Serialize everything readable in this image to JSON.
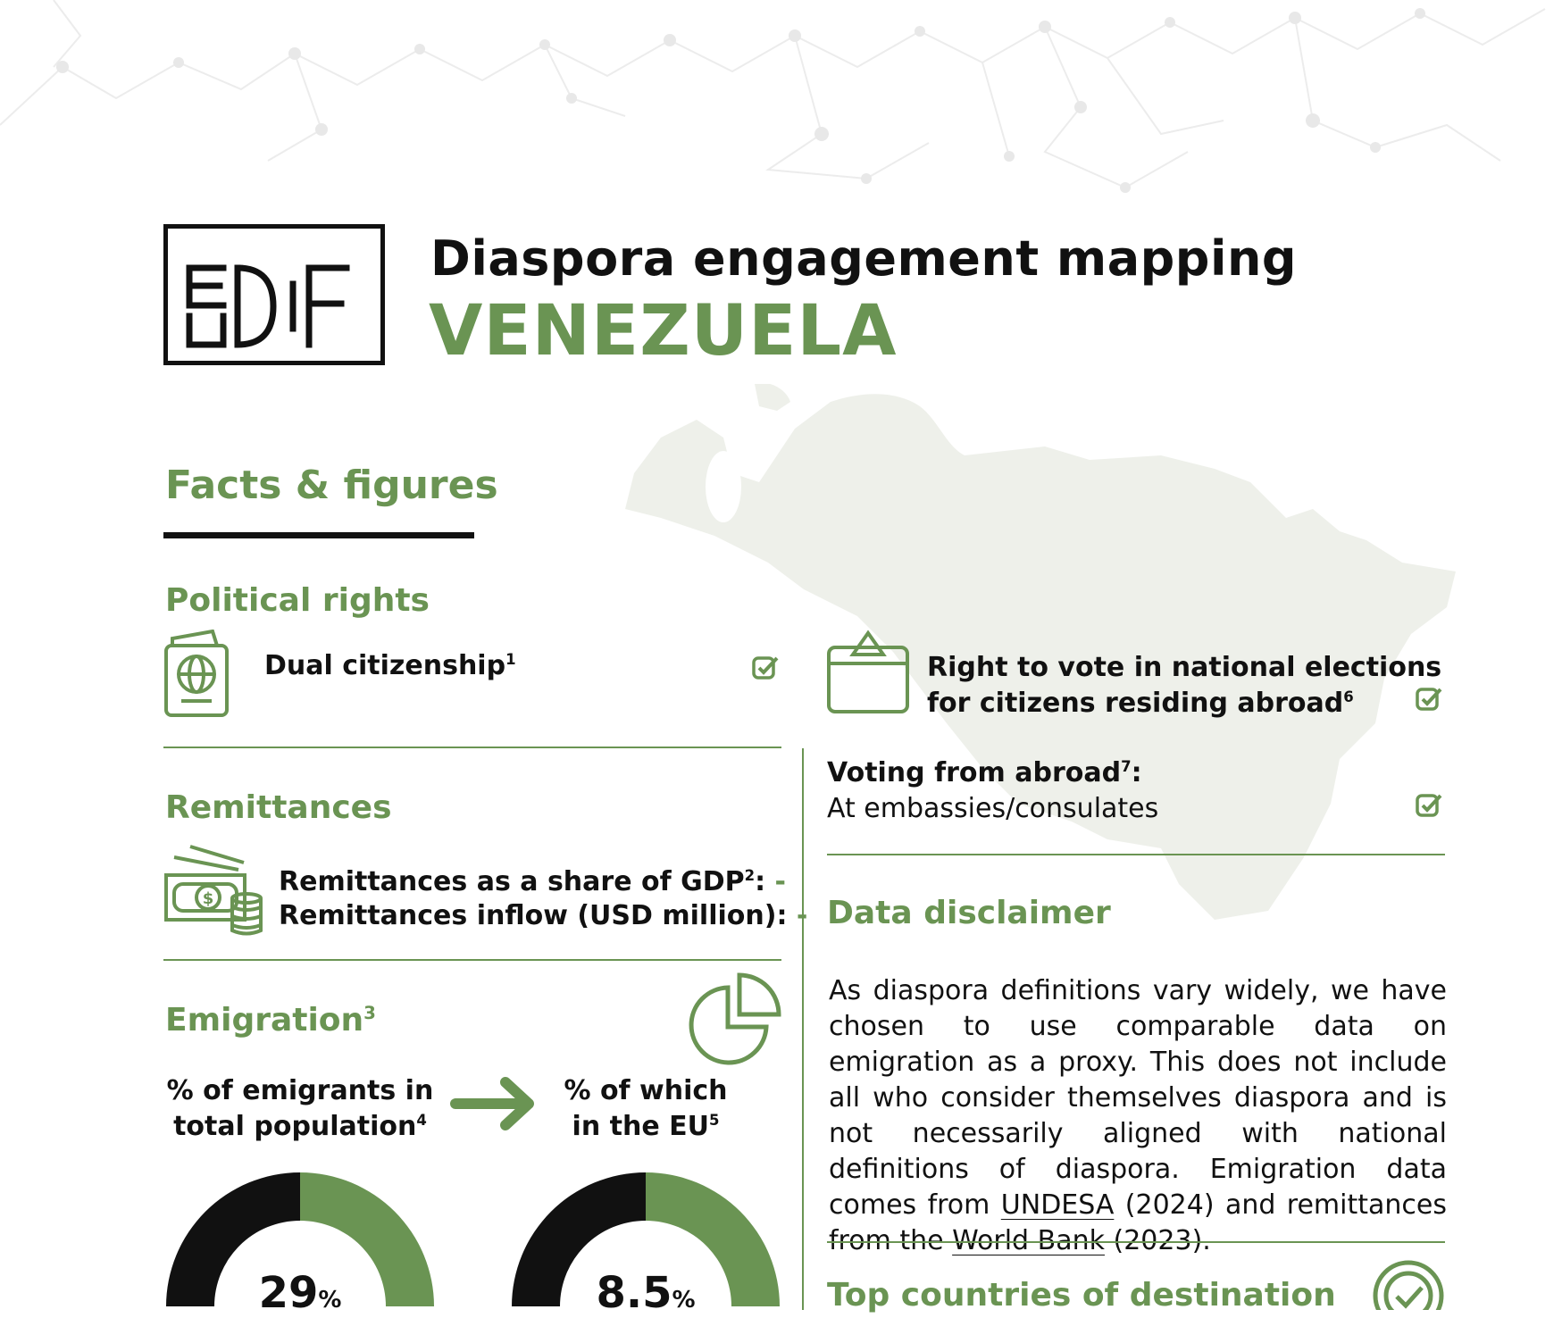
{
  "header": {
    "logo_text": "EUDIF",
    "title": "Diaspora engagement mapping",
    "country": "VENEZUELA"
  },
  "facts": {
    "heading": "Facts & figures"
  },
  "political_rights": {
    "heading": "Political rights",
    "dual_citizenship": {
      "label": "Dual citizenship",
      "note": "1",
      "checked": true
    },
    "right_to_vote": {
      "line1": "Right to vote in national elections",
      "line2": "for citizens residing abroad",
      "note": "6",
      "checked": true
    },
    "voting_from_abroad": {
      "label": "Voting from abroad",
      "note": "7",
      "suffix": ":",
      "value": "At embassies/consulates",
      "checked": true
    }
  },
  "remittances": {
    "heading": "Remittances",
    "share_label": "Remittances as a share of GDP",
    "share_note": "2",
    "share_suffix": ":",
    "share_value": "-",
    "inflow_label": "Remittances inflow (USD million):",
    "inflow_value": "-"
  },
  "emigration": {
    "heading": "Emigration",
    "note": "3",
    "gauge1": {
      "line1": "% of emigrants in",
      "line2": "total population",
      "note": "4",
      "value": "29",
      "unit": "%",
      "fraction": 0.29
    },
    "gauge2": {
      "line1": "% of which",
      "line2": "in the EU",
      "note": "5",
      "value": "8.5",
      "unit": "%",
      "fraction": 0.085
    }
  },
  "disclaimer": {
    "heading": "Data disclaimer",
    "text_a": "As diaspora definitions vary widely, we have chosen to use comparable data on emigration as a proxy. This does not include all who consider themselves diaspora and is not necessarily aligned with national definitions of diaspora. Emigration data comes from ",
    "link1": "UNDESA",
    "text_b": " (2024) and remittances from the ",
    "link2": "World Bank",
    "text_c": " (2023)."
  },
  "top_countries": {
    "heading": "Top countries of destination"
  },
  "colors": {
    "accent": "#6a9453",
    "dark": "#111111",
    "map": "#eef0ea"
  }
}
